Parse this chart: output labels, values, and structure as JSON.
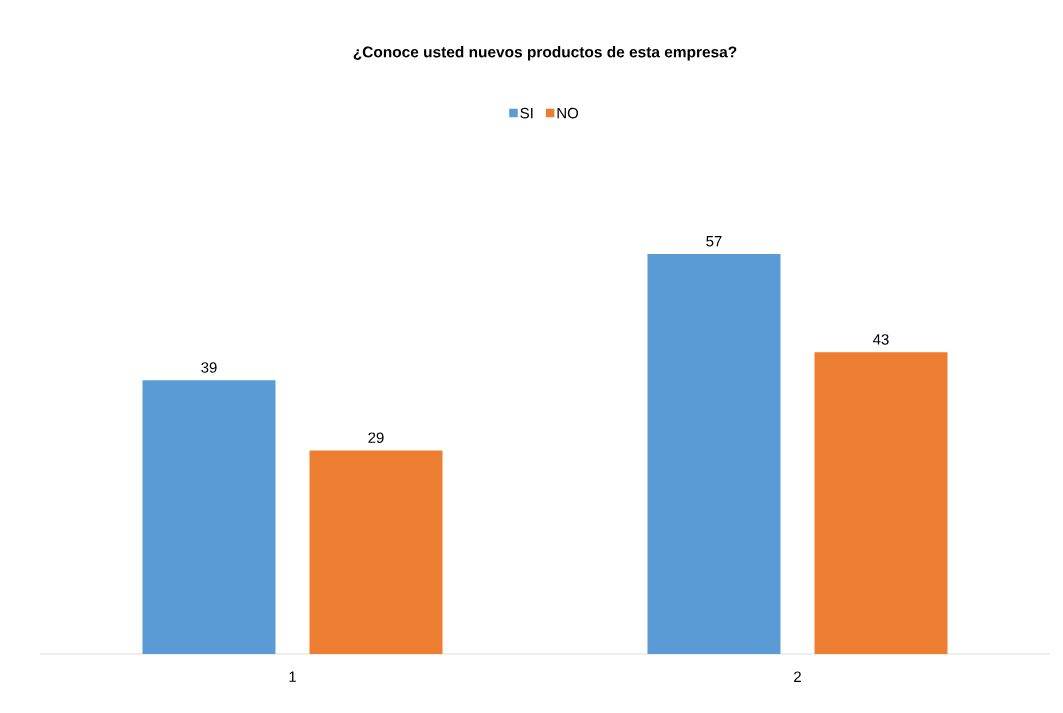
{
  "chart_data": {
    "type": "bar",
    "title": "¿Conoce usted nuevos productos de esta empresa?",
    "categories": [
      "1",
      "2"
    ],
    "series": [
      {
        "name": "SI",
        "color": "#5b9bd5",
        "values": [
          39,
          57
        ]
      },
      {
        "name": "NO",
        "color": "#ed7d31",
        "values": [
          29,
          43
        ]
      }
    ],
    "data_labels": true,
    "legend": "top"
  }
}
